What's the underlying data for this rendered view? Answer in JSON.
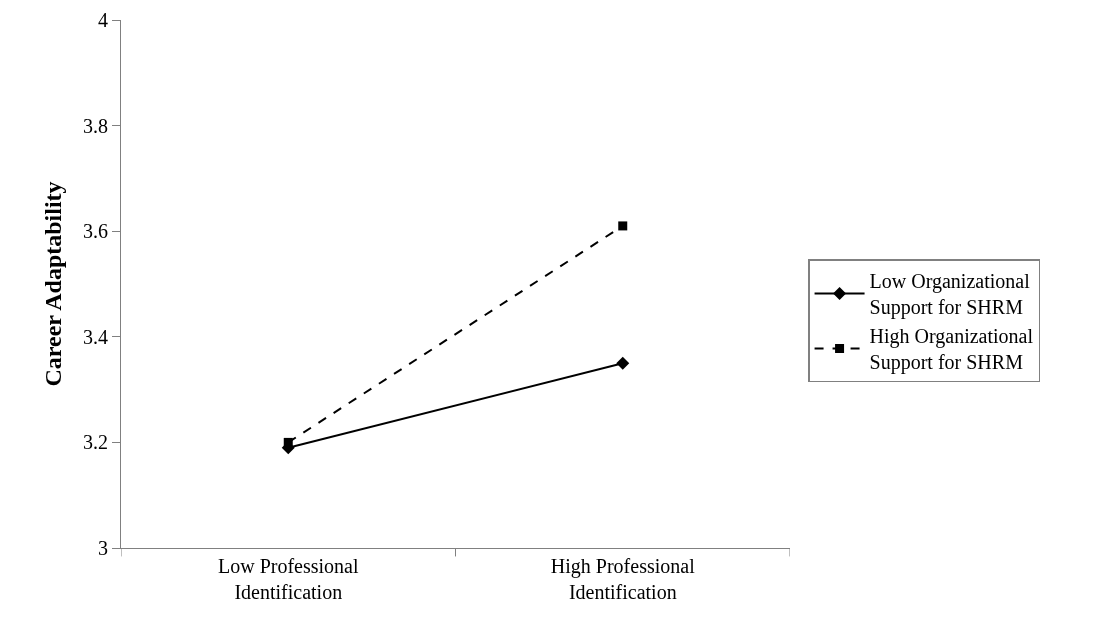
{
  "chart_data": {
    "type": "line",
    "ylabel": "Career Adaptability",
    "categories": [
      "Low Professional Identification",
      "High Professional Identification"
    ],
    "series": [
      {
        "name": "Low Organizational Support for SHRM",
        "color": "#000000",
        "values": [
          3.19,
          3.35
        ],
        "marker": "diamond",
        "line_style": "solid"
      },
      {
        "name": "High Organizational Support for SHRM",
        "color": "#000000",
        "values": [
          3.2,
          3.61
        ],
        "marker": "square",
        "line_style": "dashed"
      }
    ],
    "ylim": [
      3,
      4
    ],
    "yticks": [
      3,
      3.2,
      3.4,
      3.6,
      3.8,
      4
    ],
    "grid": false,
    "legend": "right"
  }
}
